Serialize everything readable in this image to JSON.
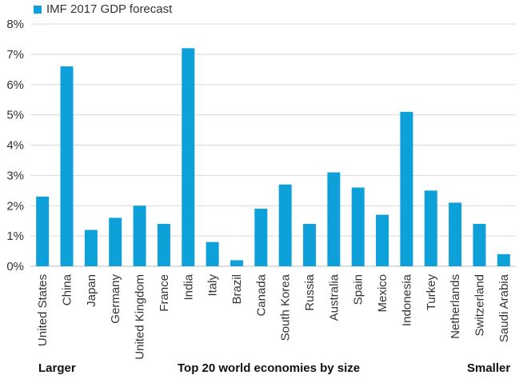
{
  "chart_data": {
    "type": "bar",
    "categories": [
      "United States",
      "China",
      "Japan",
      "Germany",
      "United Kingdom",
      "France",
      "India",
      "Italy",
      "Brazil",
      "Canada",
      "South Korea",
      "Russia",
      "Australia",
      "Spain",
      "Mexico",
      "Indonesia",
      "Turkey",
      "Netherlands",
      "Switzerland",
      "Saudi Arabia"
    ],
    "series": [
      {
        "name": "IMF 2017 GDP forecast",
        "values": [
          2.3,
          6.6,
          1.2,
          1.6,
          2.0,
          1.4,
          7.2,
          0.8,
          0.2,
          1.9,
          2.7,
          1.4,
          3.1,
          2.6,
          1.7,
          5.1,
          2.5,
          2.1,
          1.4,
          0.4
        ]
      }
    ],
    "ylim": [
      0,
      8
    ],
    "yticks": [
      "0%",
      "1%",
      "2%",
      "3%",
      "4%",
      "5%",
      "6%",
      "7%",
      "8%"
    ],
    "grid": true,
    "legend_position": "top-left",
    "xlabel": "Top 20 world economies by size",
    "xlabel_left": "Larger",
    "xlabel_right": "Smaller"
  },
  "colors": {
    "bar": "#0ea0d9",
    "grid": "#d9d9d9",
    "axis": "#bfbfbf"
  }
}
